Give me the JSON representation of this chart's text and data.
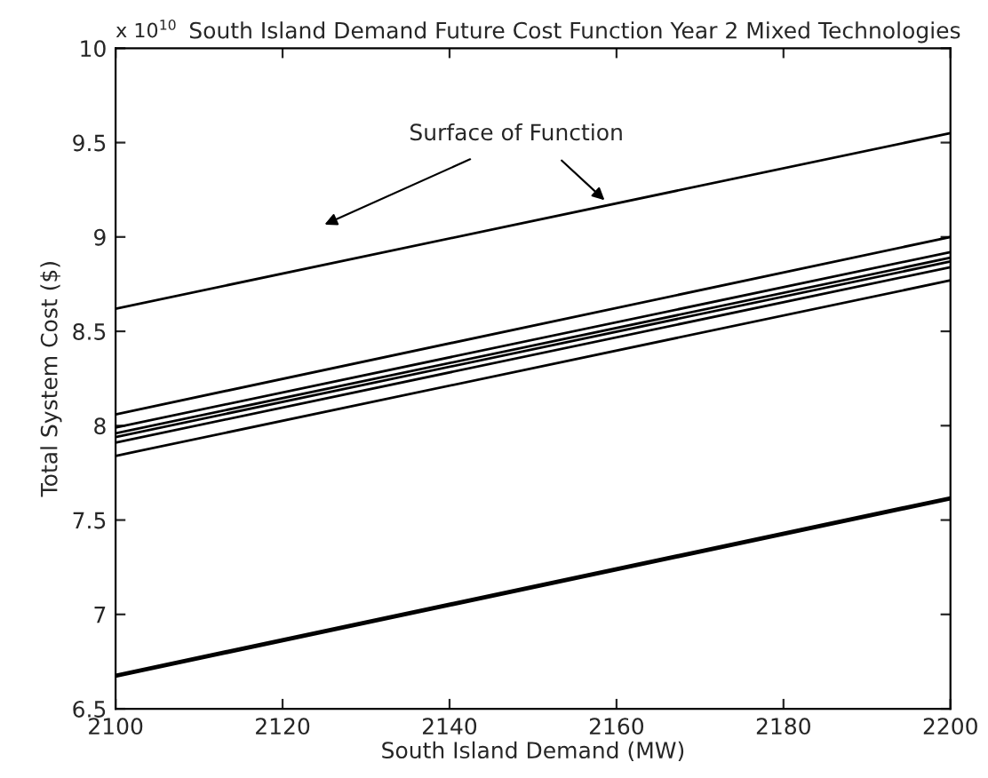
{
  "chart_data": {
    "type": "line",
    "title": "South Island Demand Future Cost Function Year 2 Mixed Technologies",
    "xlabel": "South Island Demand (MW)",
    "ylabel": "Total System Cost ($)",
    "x": [
      2100,
      2200
    ],
    "series": [
      {
        "color": "#000000",
        "values": [
          8.62,
          9.55
        ]
      },
      {
        "color": "#000000",
        "values": [
          8.06,
          9.0
        ]
      },
      {
        "color": "#000000",
        "values": [
          7.99,
          8.92
        ]
      },
      {
        "color": "#000000",
        "values": [
          7.96,
          8.89
        ]
      },
      {
        "color": "#000000",
        "values": [
          7.94,
          8.87
        ]
      },
      {
        "color": "#000000",
        "values": [
          7.91,
          8.84
        ]
      },
      {
        "color": "#000000",
        "values": [
          7.84,
          8.77
        ]
      },
      {
        "color": "#000000",
        "values": [
          6.68,
          7.62
        ]
      },
      {
        "color": "#000000",
        "values": [
          6.67,
          7.61
        ]
      }
    ],
    "xlim": [
      2100,
      2200
    ],
    "xticks": [
      2100,
      2120,
      2140,
      2160,
      2180,
      2200
    ],
    "ylim": [
      6.5,
      10
    ],
    "yticks": [
      6.5,
      7,
      7.5,
      8,
      8.5,
      9,
      9.5,
      10
    ],
    "annotations": [
      "x 10$^{10}$",
      "Surface of Function"
    ],
    "grid": false,
    "legend": false,
    "marker": "none",
    "line_style": "solid"
  }
}
